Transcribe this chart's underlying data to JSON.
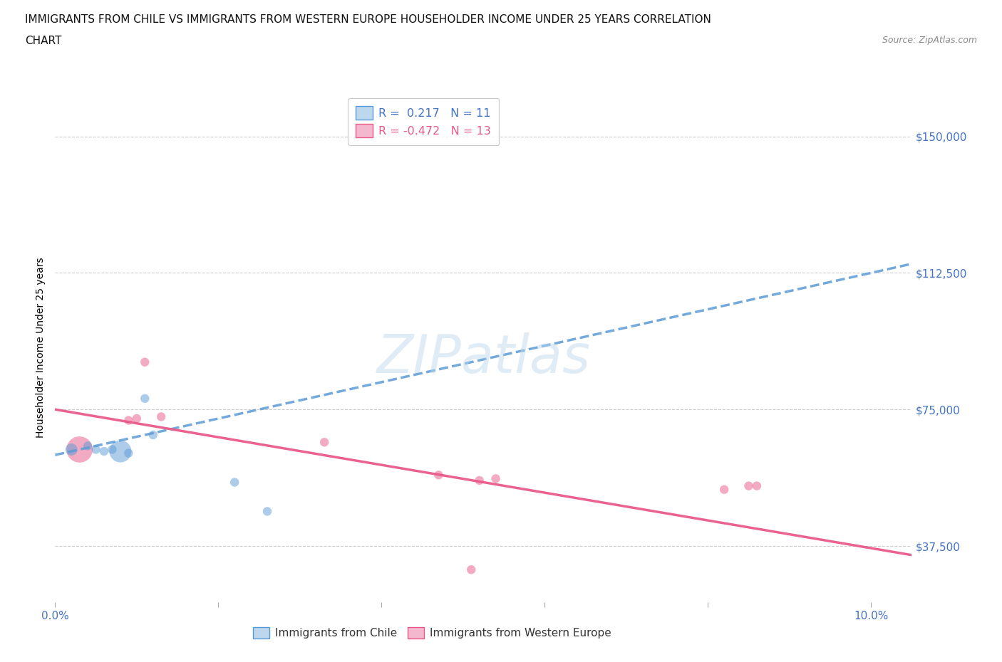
{
  "title_line1": "IMMIGRANTS FROM CHILE VS IMMIGRANTS FROM WESTERN EUROPE HOUSEHOLDER INCOME UNDER 25 YEARS CORRELATION",
  "title_line2": "CHART",
  "source": "Source: ZipAtlas.com",
  "ylabel": "Householder Income Under 25 years",
  "xlim": [
    0.0,
    0.105
  ],
  "ylim": [
    22000,
    162000
  ],
  "xticks": [
    0.0,
    0.02,
    0.04,
    0.06,
    0.08,
    0.1
  ],
  "xtick_labels": [
    "0.0%",
    "",
    "",
    "",
    "",
    "10.0%"
  ],
  "yticks": [
    37500,
    75000,
    112500,
    150000
  ],
  "ytick_labels": [
    "$37,500",
    "$75,000",
    "$112,500",
    "$150,000"
  ],
  "watermark": "ZIPatlas",
  "chile_color": "#5b9bd5",
  "chile_color_light": "#bdd7ee",
  "western_europe_color": "#e8598a",
  "western_europe_color_light": "#f4b8ce",
  "R_chile": "0.217",
  "N_chile": 11,
  "R_western_europe": "-0.472",
  "N_western_europe": 13,
  "chile_x": [
    0.002,
    0.004,
    0.005,
    0.006,
    0.007,
    0.008,
    0.009,
    0.011,
    0.012,
    0.022,
    0.026
  ],
  "chile_y": [
    64000,
    65000,
    64000,
    63500,
    64000,
    63500,
    63000,
    78000,
    68000,
    55000,
    47000
  ],
  "chile_size": [
    150,
    80,
    80,
    80,
    80,
    500,
    80,
    80,
    80,
    80,
    80
  ],
  "western_europe_x": [
    0.003,
    0.009,
    0.01,
    0.011,
    0.013,
    0.033,
    0.047,
    0.052,
    0.054,
    0.082,
    0.085,
    0.086,
    0.051
  ],
  "western_europe_y": [
    64000,
    72000,
    72500,
    88000,
    73000,
    66000,
    57000,
    55500,
    56000,
    53000,
    54000,
    54000,
    31000
  ],
  "western_europe_size": [
    700,
    80,
    80,
    80,
    80,
    80,
    80,
    80,
    80,
    80,
    80,
    80,
    80
  ],
  "chile_trend_x": [
    0.0,
    0.105
  ],
  "chile_trend_y": [
    62500,
    115000
  ],
  "west_trend_x": [
    0.0,
    0.105
  ],
  "west_trend_y": [
    75000,
    35000
  ],
  "background_color": "#ffffff",
  "grid_color": "#cccccc",
  "axis_color": "#4472c4",
  "title_fontsize": 11,
  "label_fontsize": 11
}
